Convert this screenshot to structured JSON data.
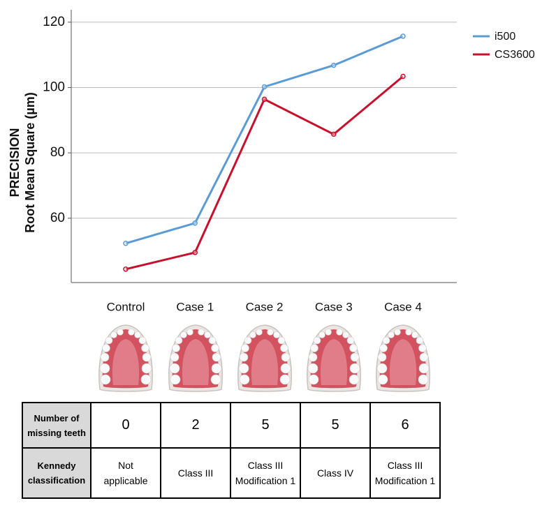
{
  "chart_data": {
    "type": "line",
    "y_label_lines": [
      "PRECISION",
      "Root Mean Square (µm)"
    ],
    "categories": [
      "Control",
      "Case 1",
      "Case 2",
      "Case 3",
      "Case 4"
    ],
    "series": [
      {
        "name": "i500",
        "color": "#5b9bd5",
        "values": [
          52.3,
          58.5,
          100.2,
          106.8,
          115.7
        ]
      },
      {
        "name": "CS3600",
        "color": "#c8102e",
        "values": [
          44.4,
          49.5,
          96.4,
          85.7,
          103.4
        ]
      }
    ],
    "ylim": [
      40.3,
      123.8
    ],
    "yticks": [
      60,
      80,
      100,
      120
    ],
    "grid": true,
    "legend": "right"
  },
  "table": {
    "rows": [
      [
        "Number of\nmissing teeth",
        0,
        2,
        5,
        5,
        6
      ],
      [
        "Kennedy\nclassification",
        "Not\napplicable",
        "Class III",
        "Class III\nModification 1",
        "Class IV",
        "Class III\nModification 1"
      ]
    ]
  }
}
